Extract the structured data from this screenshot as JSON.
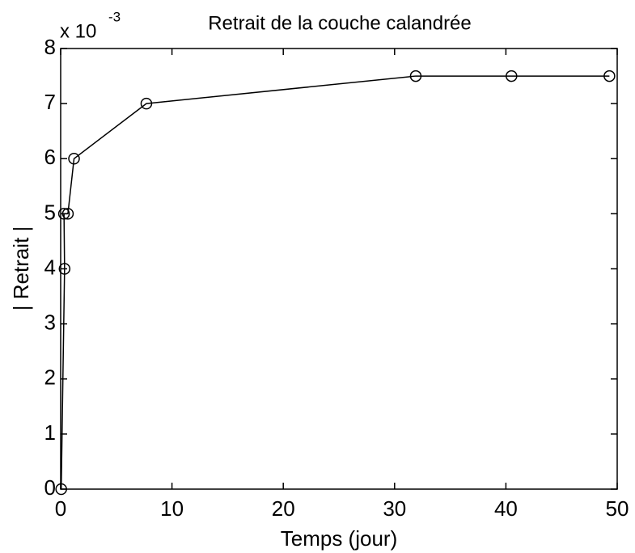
{
  "chart_data": {
    "type": "line",
    "title": "Retrait de la couche calandrée",
    "x_label": "Temps (jour)",
    "y_label": "| Retrait |",
    "y_multiplier": {
      "base": "x 10",
      "exponent": "-3"
    },
    "x": [
      0.05,
      0.35,
      0.3,
      0.65,
      1.2,
      7.7,
      31.9,
      40.5,
      49.3
    ],
    "values": [
      0,
      4,
      5,
      5,
      6,
      7,
      7.5,
      7.5,
      7.5
    ],
    "color": "#000000",
    "marker": "circle",
    "xlim": [
      0,
      50
    ],
    "xticks": [
      0,
      10,
      20,
      30,
      40,
      50
    ],
    "ylim": [
      0,
      8
    ],
    "yticks": [
      0,
      1,
      2,
      3,
      4,
      5,
      6,
      7,
      8
    ],
    "grid": false
  }
}
